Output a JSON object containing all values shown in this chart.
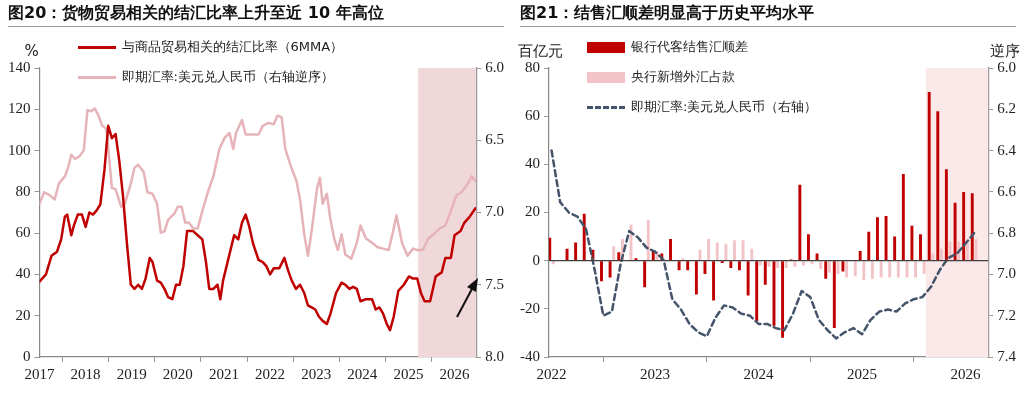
{
  "chart_data": [
    {
      "type": "line",
      "title": "图20：货物贸易相关的结汇比率上升至近 10 年高位",
      "ylabel": "%",
      "xlim": [
        2017,
        2026.47
      ],
      "xticks": [
        2017,
        2018,
        2019,
        2020,
        2021,
        2022,
        2023,
        2024,
        2025,
        2026
      ],
      "ylim": [
        0,
        140
      ],
      "yticks": [
        0,
        20,
        40,
        60,
        80,
        100,
        120,
        140
      ],
      "y2lim": [
        8,
        6
      ],
      "y2ticks": [
        {
          "value": 6,
          "label": "6.0"
        },
        {
          "value": 6.5,
          "label": "6.5"
        },
        {
          "value": 7,
          "label": "7.0"
        },
        {
          "value": 7.5,
          "label": "7.5"
        },
        {
          "value": 8,
          "label": "8.0"
        }
      ],
      "bands": [
        {
          "axis": "x",
          "from": 2025.21,
          "to": 2026.47,
          "color": "#f0d8da"
        }
      ],
      "legend": "top left",
      "grid": false,
      "series": [
        {
          "name": "与商品贸易相关的结汇比率（6MMA）",
          "color": "#c00000",
          "x": [
            2017.0,
            2017.14,
            2017.26,
            2017.38,
            2017.47,
            2017.55,
            2017.6,
            2017.69,
            2017.75,
            2017.83,
            2017.92,
            2018.0,
            2018.08,
            2018.16,
            2018.24,
            2018.32,
            2018.41,
            2018.49,
            2018.57,
            2018.65,
            2018.73,
            2018.81,
            2018.9,
            2018.98,
            2019.06,
            2019.14,
            2019.22,
            2019.3,
            2019.39,
            2019.45,
            2019.55,
            2019.63,
            2019.71,
            2019.79,
            2019.88,
            2019.96,
            2020.04,
            2020.12,
            2020.2,
            2020.33,
            2020.43,
            2020.53,
            2020.61,
            2020.68,
            2020.77,
            2020.86,
            2020.92,
            2020.98,
            2021.1,
            2021.22,
            2021.31,
            2021.39,
            2021.47,
            2021.55,
            2021.63,
            2021.75,
            2021.84,
            2021.92,
            2022.0,
            2022.08,
            2022.2,
            2022.31,
            2022.39,
            2022.47,
            2022.56,
            2022.65,
            2022.74,
            2022.82,
            2022.9,
            2022.98,
            2023.06,
            2023.14,
            2023.23,
            2023.31,
            2023.43,
            2023.55,
            2023.63,
            2023.72,
            2023.8,
            2023.88,
            2023.96,
            2024.08,
            2024.21,
            2024.29,
            2024.37,
            2024.45,
            2024.53,
            2024.6,
            2024.68,
            2024.78,
            2024.9,
            2025.01,
            2025.1,
            2025.19,
            2025.27,
            2025.35,
            2025.47,
            2025.59,
            2025.72,
            2025.8,
            2025.92,
            2026.0,
            2026.13,
            2026.21,
            2026.33,
            2026.45
          ],
          "values": [
            36.5,
            40,
            49,
            51,
            57,
            68,
            69,
            59,
            64,
            69,
            69,
            63,
            70,
            69,
            71,
            74,
            91,
            112,
            106,
            108,
            95,
            78,
            54,
            35,
            33,
            35,
            33,
            38,
            48,
            46,
            37,
            36,
            33,
            29,
            28,
            35,
            35,
            44,
            61,
            61,
            59,
            57,
            46,
            33,
            33,
            35,
            28,
            37,
            48,
            59,
            57,
            65,
            69,
            63,
            55,
            47,
            46,
            44,
            40,
            43,
            43,
            48,
            42,
            37,
            33,
            35,
            31,
            25,
            24,
            23,
            19.5,
            17.5,
            16,
            21,
            31,
            36,
            35,
            33,
            34,
            33,
            27,
            28,
            28,
            23,
            24,
            21,
            16,
            13,
            19.5,
            32,
            35,
            39,
            38,
            38,
            31,
            27,
            27,
            39,
            41,
            48,
            48,
            59,
            61,
            65,
            68,
            72
          ]
        },
        {
          "name": "即期汇率:美元兑人民币（右轴逆序）",
          "color": "#e6b3b8",
          "axis": "y2",
          "x": [
            2017.0,
            2017.1,
            2017.22,
            2017.33,
            2017.42,
            2017.55,
            2017.63,
            2017.69,
            2017.77,
            2017.87,
            2017.96,
            2018.04,
            2018.12,
            2018.2,
            2018.28,
            2018.36,
            2018.45,
            2018.53,
            2018.57,
            2018.65,
            2018.77,
            2018.85,
            2018.98,
            2019.06,
            2019.14,
            2019.26,
            2019.34,
            2019.45,
            2019.55,
            2019.63,
            2019.71,
            2019.79,
            2019.92,
            2020.0,
            2020.08,
            2020.16,
            2020.24,
            2020.33,
            2020.43,
            2020.53,
            2020.65,
            2020.77,
            2020.9,
            2021.02,
            2021.12,
            2021.2,
            2021.26,
            2021.39,
            2021.47,
            2021.63,
            2021.75,
            2021.84,
            2021.96,
            2022.08,
            2022.16,
            2022.25,
            2022.33,
            2022.45,
            2022.57,
            2022.65,
            2022.74,
            2022.82,
            2022.9,
            2023.02,
            2023.08,
            2023.14,
            2023.23,
            2023.31,
            2023.39,
            2023.47,
            2023.55,
            2023.63,
            2023.76,
            2023.88,
            2023.96,
            2024.08,
            2024.21,
            2024.33,
            2024.45,
            2024.57,
            2024.66,
            2024.74,
            2024.86,
            2024.98,
            2025.1,
            2025.19,
            2025.31,
            2025.43,
            2025.55,
            2025.68,
            2025.8,
            2025.92,
            2026.04,
            2026.15,
            2026.22,
            2026.29,
            2026.37,
            2026.45
          ],
          "values": [
            6.94,
            6.86,
            6.88,
            6.91,
            6.8,
            6.75,
            6.68,
            6.6,
            6.63,
            6.61,
            6.57,
            6.29,
            6.3,
            6.28,
            6.33,
            6.4,
            6.42,
            6.69,
            6.83,
            6.84,
            6.96,
            6.94,
            6.8,
            6.69,
            6.67,
            6.72,
            6.86,
            6.87,
            6.94,
            7.14,
            7.13,
            7.05,
            7.01,
            6.96,
            6.96,
            7.07,
            7.07,
            7.11,
            7.11,
            6.99,
            6.86,
            6.75,
            6.56,
            6.48,
            6.45,
            6.56,
            6.45,
            6.36,
            6.46,
            6.46,
            6.46,
            6.4,
            6.38,
            6.39,
            6.33,
            6.34,
            6.56,
            6.68,
            6.78,
            6.91,
            7.15,
            7.3,
            7.13,
            6.83,
            6.76,
            6.94,
            6.87,
            7.05,
            7.18,
            7.26,
            7.15,
            7.29,
            7.32,
            7.21,
            7.09,
            7.18,
            7.21,
            7.24,
            7.25,
            7.26,
            7.14,
            7.02,
            7.21,
            7.3,
            7.25,
            7.26,
            7.26,
            7.18,
            7.15,
            7.11,
            7.09,
            6.99,
            6.88,
            6.86,
            6.83,
            6.8,
            6.75,
            6.78
          ]
        }
      ]
    },
    {
      "type": "bar",
      "title": "图21：结售汇顺差明显高于历史平均水平",
      "ylabel": "百亿元",
      "y2label": "逆序",
      "xlim": [
        2021.975,
        2026.22
      ],
      "xticks": [
        2022,
        2023,
        2024,
        2025,
        2026
      ],
      "ylim": [
        -40,
        80
      ],
      "yticks": [
        -40,
        -20,
        0,
        20,
        40,
        60,
        80
      ],
      "y2lim": [
        7.4,
        6
      ],
      "y2ticks": [
        {
          "value": 6,
          "label": "6.0"
        },
        {
          "value": 6.2,
          "label": "6.2"
        },
        {
          "value": 6.4,
          "label": "6.4"
        },
        {
          "value": 6.6,
          "label": "6.6"
        },
        {
          "value": 6.8,
          "label": "6.8"
        },
        {
          "value": 7,
          "label": "7.0"
        },
        {
          "value": 7.2,
          "label": "7.2"
        },
        {
          "value": 7.4,
          "label": "7.4"
        }
      ],
      "bands": [
        {
          "axis": "x",
          "from": 2025.617,
          "to": 2026.22,
          "color": "#fbe9ea"
        }
      ],
      "ref_lines": [
        {
          "axis": "y",
          "value": 0,
          "color": "#404040"
        }
      ],
      "legend": "top left",
      "grid": false,
      "x": [
        2022,
        2022.083,
        2022.167,
        2022.25,
        2022.333,
        2022.417,
        2022.5,
        2022.583,
        2022.667,
        2022.75,
        2022.833,
        2022.917,
        2023,
        2023.083,
        2023.167,
        2023.25,
        2023.333,
        2023.417,
        2023.5,
        2023.583,
        2023.667,
        2023.75,
        2023.833,
        2023.917,
        2024,
        2024.083,
        2024.167,
        2024.25,
        2024.333,
        2024.417,
        2024.5,
        2024.583,
        2024.667,
        2024.75,
        2024.833,
        2024.917,
        2025,
        2025.083,
        2025.167,
        2025.25,
        2025.333,
        2025.417,
        2025.5,
        2025.583,
        2025.667,
        2025.75,
        2025.833,
        2025.917,
        2026,
        2026.083
      ],
      "series": [
        {
          "name": "银行代客结售汇顺差",
          "color": "#c00000",
          "values": [
            9.5,
            0,
            5,
            7.5,
            19.5,
            4.5,
            -8.5,
            -7,
            3.5,
            0,
            1,
            -11,
            4,
            3,
            9,
            -4,
            -4,
            -14,
            -5.5,
            -16.5,
            -1,
            -3,
            -4,
            -14.5,
            -25,
            -10,
            -27,
            -32,
            0.5,
            31.5,
            11,
            3,
            -7.5,
            -28,
            -4.5,
            0,
            4,
            12,
            18,
            18.5,
            10,
            36,
            14.5,
            11,
            70,
            62,
            38,
            24,
            28.5,
            28
          ]
        },
        {
          "name": "央行新增外汇占款",
          "color": "#f2c4c8",
          "values": [
            -1.5,
            0,
            0,
            0,
            0,
            0,
            0,
            6,
            9,
            15,
            0,
            17,
            4,
            0,
            0,
            1,
            0,
            4.5,
            9,
            7.5,
            7,
            8.5,
            8.5,
            5,
            -2,
            -2.5,
            -3,
            -3,
            -2.5,
            -2,
            -1.5,
            -3.5,
            -5,
            -5.5,
            -7,
            -6.5,
            -8,
            -7.5,
            -7,
            -7,
            -7,
            -7,
            -7,
            -5.5,
            3,
            5,
            8,
            8,
            8,
            9
          ]
        },
        {
          "name": "即期汇率:美元兑人民币（右轴）",
          "type": "line",
          "color": "#44546a",
          "axis": "y2",
          "line_style": "dashed",
          "values": [
            6.4,
            6.65,
            6.7,
            6.72,
            6.78,
            6.98,
            7.2,
            7.18,
            6.95,
            6.79,
            6.82,
            6.87,
            6.89,
            6.93,
            7.12,
            7.17,
            7.24,
            7.28,
            7.3,
            7.21,
            7.15,
            7.16,
            7.19,
            7.2,
            7.24,
            7.24,
            7.26,
            7.27,
            7.19,
            7.08,
            7.11,
            7.22,
            7.27,
            7.31,
            7.28,
            7.26,
            7.29,
            7.22,
            7.18,
            7.17,
            7.18,
            7.14,
            7.12,
            7.11,
            7.06,
            6.98,
            6.92,
            6.9,
            6.85,
            6.8
          ]
        }
      ]
    }
  ]
}
